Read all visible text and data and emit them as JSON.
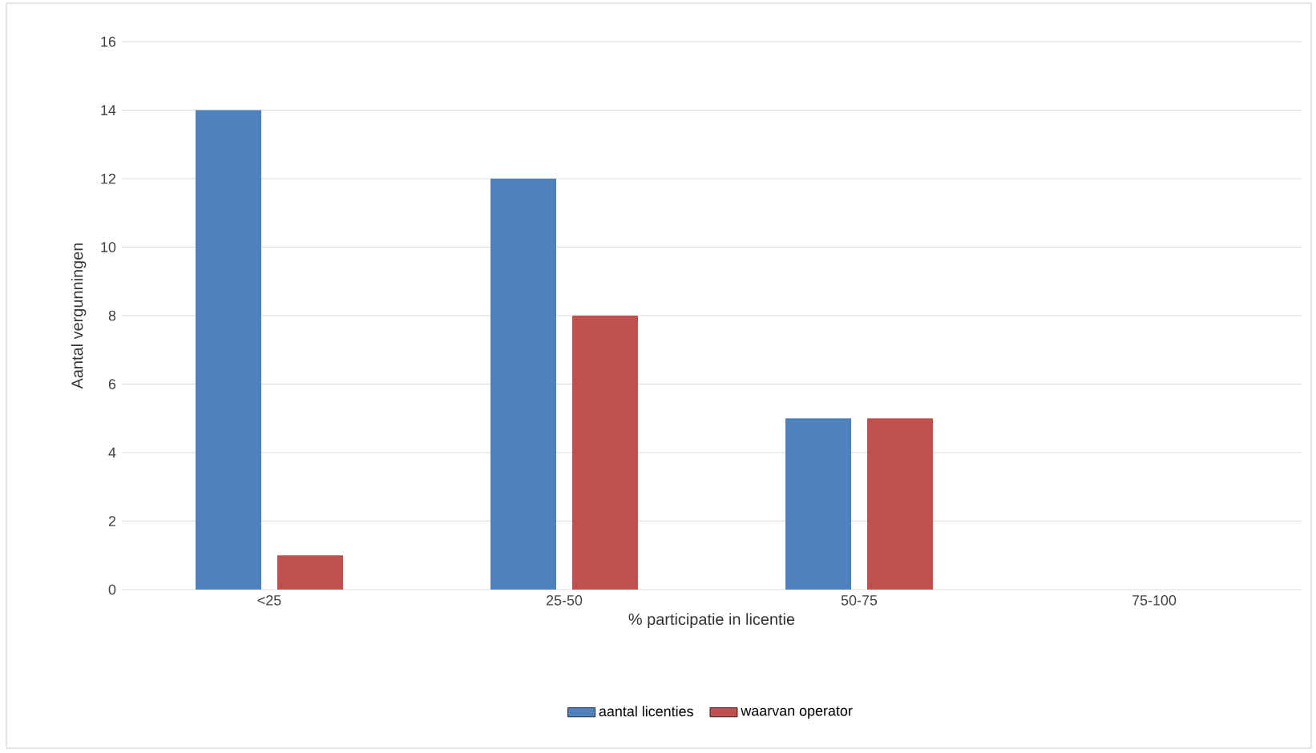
{
  "chart_data": {
    "type": "bar",
    "xlabel": "% participatie in licentie",
    "ylabel": "Aantal vergunningen",
    "categories": [
      "<25",
      "25-50",
      "50-75",
      "75-100"
    ],
    "series": [
      {
        "name": "aantal licenties",
        "color": "#4f81bd",
        "values": [
          14,
          12,
          5,
          0
        ]
      },
      {
        "name": "waarvan operator",
        "color": "#c0504d",
        "values": [
          1,
          8,
          5,
          0
        ]
      }
    ],
    "ylim": [
      0,
      16
    ],
    "yticks": [
      0,
      2,
      4,
      6,
      8,
      10,
      12,
      14,
      16
    ],
    "grid": "y",
    "legend": "bottom"
  }
}
